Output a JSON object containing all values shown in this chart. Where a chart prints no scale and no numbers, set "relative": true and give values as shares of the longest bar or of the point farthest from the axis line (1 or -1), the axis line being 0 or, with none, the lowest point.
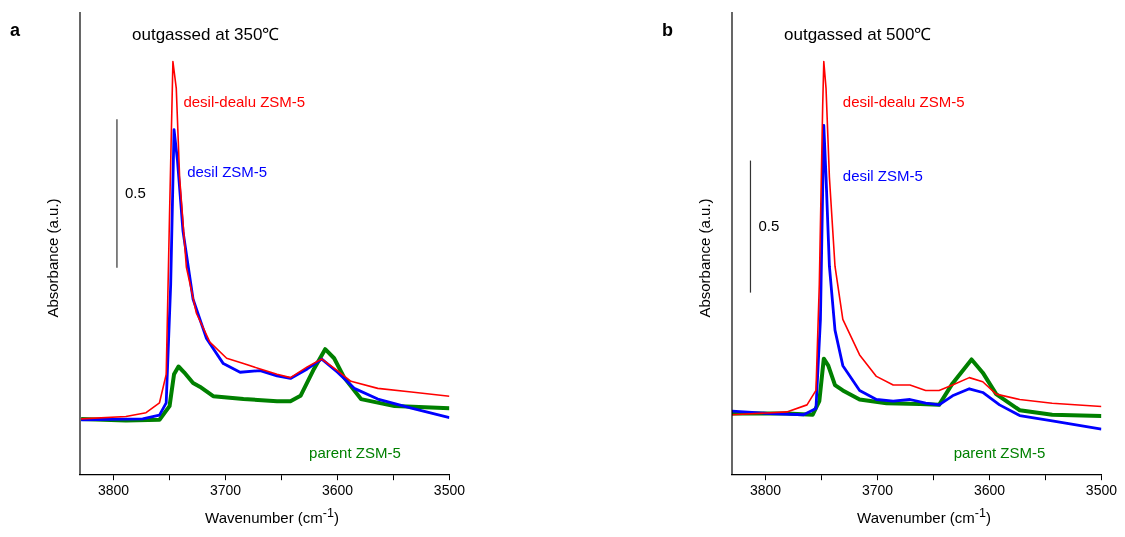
{
  "chart_data": [
    {
      "type": "line",
      "title": "outgassed at 350℃",
      "xlabel": "Wavenumber (cm$^{-1}$)",
      "ylabel": "Absorbance (a.u.)",
      "annotations": [
        "a",
        "0.5"
      ],
      "relative": true,
      "xlim": [
        3830,
        3500
      ],
      "xticks": [
        3800,
        {
          "value": 3750,
          "label": null
        },
        3700,
        {
          "value": 3650,
          "label": null
        },
        3600,
        {
          "value": 3550,
          "label": null
        },
        3500
      ],
      "grid": false,
      "legend": false,
      "marker": "none",
      "line_style": "solid",
      "series": [
        {
          "name": "desil-dealu ZSM-5",
          "color": "#ff0000",
          "x": [
            3829,
            3789,
            3771,
            3759,
            3753,
            3750,
            3747,
            3744,
            3741,
            3735,
            3726,
            3714,
            3699,
            3684,
            3669,
            3654,
            3642,
            3627,
            3614,
            3600,
            3588,
            3564,
            3534,
            3500
          ],
          "values": [
            0.134,
            0.14,
            0.149,
            0.173,
            0.242,
            0.632,
            1.0,
            0.935,
            0.719,
            0.502,
            0.39,
            0.32,
            0.281,
            0.268,
            0.255,
            0.242,
            0.234,
            0.26,
            0.279,
            0.251,
            0.225,
            0.208,
            0.199,
            0.189
          ]
        },
        {
          "name": "desil ZSM-5",
          "color": "#0000ff",
          "x": [
            3829,
            3774,
            3759,
            3753,
            3749,
            3746,
            3743,
            3738,
            3729,
            3717,
            3702,
            3687,
            3669,
            3654,
            3642,
            3627,
            3614,
            3600,
            3585,
            3564,
            3534,
            3500
          ],
          "values": [
            0.132,
            0.134,
            0.143,
            0.173,
            0.459,
            0.835,
            0.762,
            0.589,
            0.424,
            0.329,
            0.268,
            0.247,
            0.251,
            0.238,
            0.232,
            0.255,
            0.279,
            0.247,
            0.208,
            0.182,
            0.16,
            0.137
          ]
        },
        {
          "name": "parent ZSM-5",
          "color": "#008000",
          "x": [
            3829,
            3789,
            3759,
            3750,
            3746,
            3742,
            3737,
            3729,
            3723,
            3711,
            3684,
            3654,
            3642,
            3633,
            3621,
            3611,
            3603,
            3594,
            3579,
            3549,
            3500
          ],
          "values": [
            0.134,
            0.13,
            0.132,
            0.165,
            0.242,
            0.261,
            0.247,
            0.221,
            0.212,
            0.189,
            0.182,
            0.177,
            0.177,
            0.19,
            0.255,
            0.303,
            0.281,
            0.234,
            0.182,
            0.165,
            0.16
          ]
        }
      ]
    },
    {
      "type": "line",
      "title": "outgassed at 500℃",
      "xlabel": "Wavenumber (cm$^{-1}$)",
      "ylabel": "Absorbance (a.u.)",
      "annotations": [
        "b",
        "0.5"
      ],
      "relative": true,
      "xlim": [
        3830,
        3500
      ],
      "xticks": [
        3800,
        {
          "value": 3750,
          "label": null
        },
        3700,
        {
          "value": 3650,
          "label": null
        },
        3600,
        {
          "value": 3550,
          "label": null
        },
        3500
      ],
      "grid": false,
      "legend": false,
      "marker": "none",
      "line_style": "solid",
      "series": [
        {
          "name": "desil-dealu ZSM-5",
          "color": "#ff0000",
          "x": [
            3830,
            3781,
            3763,
            3755,
            3752,
            3749,
            3748,
            3746,
            3743,
            3738,
            3731,
            3716,
            3701,
            3686,
            3671,
            3657,
            3645,
            3633,
            3618,
            3606,
            3594,
            3573,
            3544,
            3500
          ],
          "values": [
            0.144,
            0.151,
            0.168,
            0.203,
            0.461,
            0.892,
            1.0,
            0.935,
            0.72,
            0.504,
            0.375,
            0.289,
            0.237,
            0.216,
            0.216,
            0.203,
            0.203,
            0.216,
            0.234,
            0.224,
            0.194,
            0.181,
            0.172,
            0.164
          ]
        },
        {
          "name": "desil ZSM-5",
          "color": "#0000ff",
          "x": [
            3830,
            3796,
            3766,
            3755,
            3751,
            3748,
            3746,
            3743,
            3738,
            3731,
            3716,
            3701,
            3686,
            3671,
            3657,
            3645,
            3633,
            3618,
            3606,
            3591,
            3573,
            3544,
            3500
          ],
          "values": [
            0.153,
            0.147,
            0.144,
            0.159,
            0.375,
            0.845,
            0.72,
            0.504,
            0.349,
            0.263,
            0.203,
            0.181,
            0.177,
            0.181,
            0.172,
            0.168,
            0.19,
            0.207,
            0.198,
            0.168,
            0.142,
            0.129,
            0.109
          ]
        },
        {
          "name": "parent ZSM-5",
          "color": "#008000",
          "x": [
            3830,
            3781,
            3758,
            3752,
            3748,
            3744,
            3738,
            3731,
            3716,
            3692,
            3662,
            3645,
            3633,
            3616,
            3606,
            3594,
            3573,
            3544,
            3500
          ],
          "values": [
            0.147,
            0.147,
            0.144,
            0.177,
            0.28,
            0.263,
            0.216,
            0.203,
            0.181,
            0.172,
            0.17,
            0.168,
            0.22,
            0.278,
            0.246,
            0.194,
            0.155,
            0.144,
            0.141
          ]
        }
      ]
    }
  ]
}
